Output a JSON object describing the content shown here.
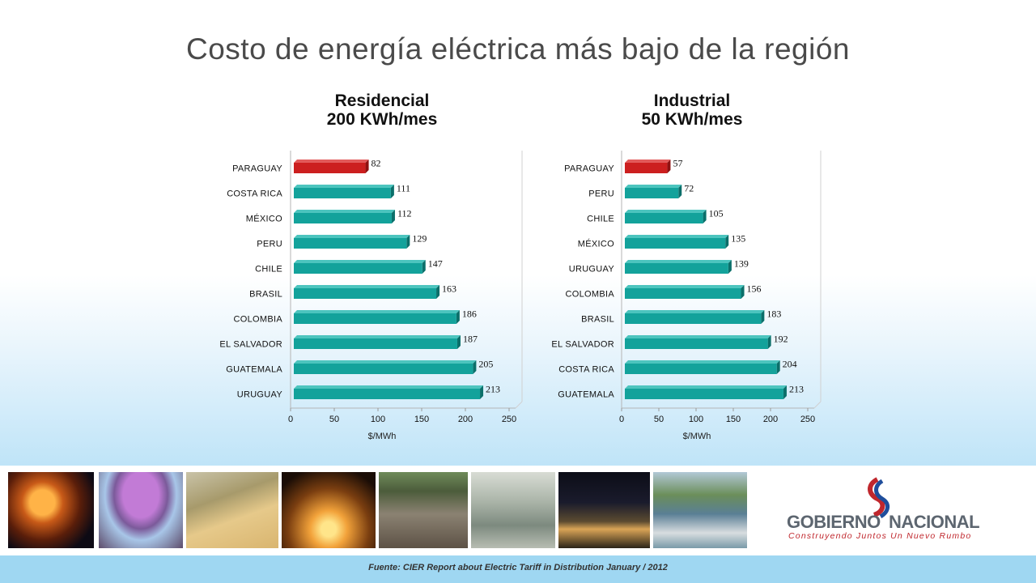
{
  "slide": {
    "title": "Costo de energía eléctrica más bajo de la región",
    "source": "Fuente: CIER Report about Electric Tariff in Distribution January / 2012"
  },
  "logo": {
    "name_part1": "GOBIERNO",
    "name_part2": "NACIONAL",
    "slogan": "Construyendo Juntos Un Nuevo Rumbo"
  },
  "photos": [
    {
      "icon": "palace-night-photo"
    },
    {
      "icon": "jacaranda-tree-photo"
    },
    {
      "icon": "soybean-harvest-photo"
    },
    {
      "icon": "sunset-palm-photo"
    },
    {
      "icon": "cattle-herd-photo"
    },
    {
      "icon": "factory-floor-photo"
    },
    {
      "icon": "port-night-photo"
    },
    {
      "icon": "river-barge-photo"
    }
  ],
  "colors": {
    "bar_default": "#13a29b",
    "bar_highlight": "#cc1f1f",
    "footer_band": "#9fd7f2"
  },
  "chart_data": [
    {
      "type": "bar",
      "orientation": "horizontal",
      "title": "Residencial",
      "subtitle": "200 KWh/mes",
      "xlabel": "$/MWh",
      "xlim": [
        0,
        250
      ],
      "xticks": [
        0,
        50,
        100,
        150,
        200,
        250
      ],
      "grid": false,
      "highlight": "PARAGUAY",
      "categories": [
        "PARAGUAY",
        "COSTA RICA",
        "MÉXICO",
        "PERU",
        "CHILE",
        "BRASIL",
        "COLOMBIA",
        "EL SALVADOR",
        "GUATEMALA",
        "URUGUAY"
      ],
      "values": [
        82,
        111,
        112,
        129,
        147,
        163,
        186,
        187,
        205,
        213
      ]
    },
    {
      "type": "bar",
      "orientation": "horizontal",
      "title": "Industrial",
      "subtitle": "50 KWh/mes",
      "xlabel": "$/MWh",
      "xlim": [
        0,
        250
      ],
      "xticks": [
        0,
        50,
        100,
        150,
        200,
        250
      ],
      "grid": false,
      "highlight": "PARAGUAY",
      "categories": [
        "PARAGUAY",
        "PERU",
        "CHILE",
        "MÉXICO",
        "URUGUAY",
        "COLOMBIA",
        "BRASIL",
        "EL SALVADOR",
        "COSTA RICA",
        "GUATEMALA"
      ],
      "values": [
        57,
        72,
        105,
        135,
        139,
        156,
        183,
        192,
        204,
        213
      ]
    }
  ]
}
